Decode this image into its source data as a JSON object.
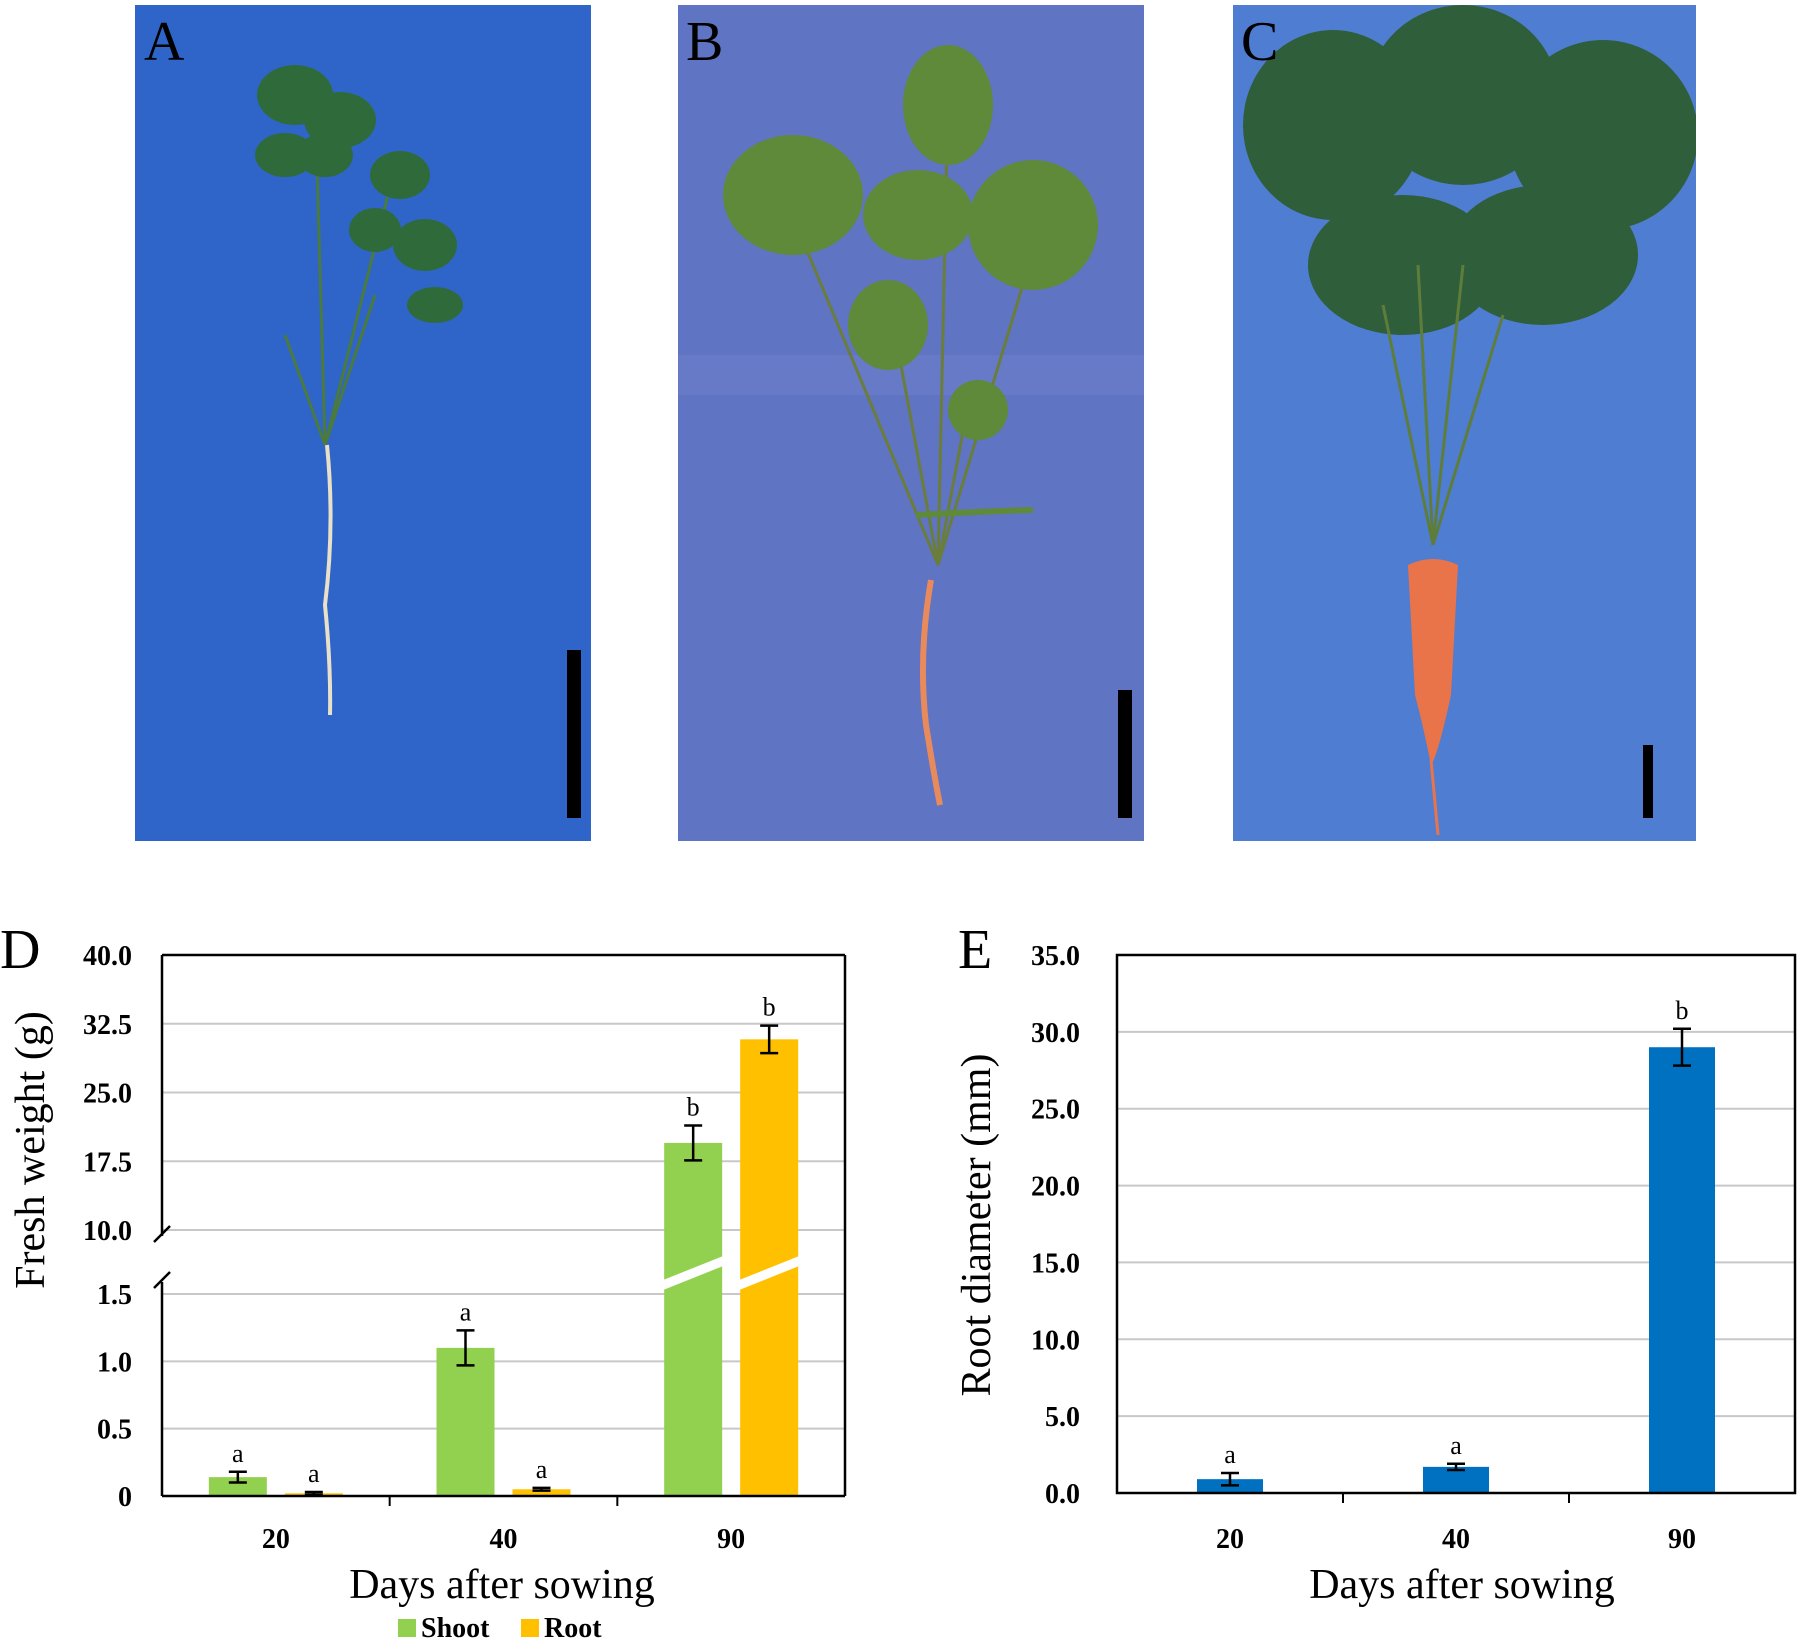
{
  "panels": {
    "A": {
      "label": "A"
    },
    "B": {
      "label": "B"
    },
    "C": {
      "label": "C"
    }
  },
  "colors": {
    "cloth_A": "#2f65c8",
    "cloth_B": "#5f74c2",
    "cloth_C": "#4e7dd1",
    "leaf": "#2f6b3a",
    "leaf_light": "#5f8a3a",
    "carrot": "#e9744a",
    "scale_bar": "#000000",
    "shoot": "#92d050",
    "root_orange": "#ffc000",
    "root_blue": "#0070c0"
  },
  "chart_data": [
    {
      "panel": "D",
      "type": "bar",
      "xlabel": "Days after sowing",
      "ylabel": "Fresh weight (g)",
      "categories": [
        "20",
        "40",
        "90"
      ],
      "axis_break": true,
      "lower_yticks": [
        "0",
        "0.5",
        "1.0",
        "1.5"
      ],
      "upper_yticks": [
        "10.0",
        "17.5",
        "25.0",
        "32.5",
        "40.0"
      ],
      "lower_ylim": [
        0,
        1.5
      ],
      "upper_ylim": [
        10,
        40
      ],
      "grid": true,
      "legend_position": "bottom",
      "series": [
        {
          "name": "Shoot",
          "color": "#92d050",
          "values": [
            0.14,
            1.1,
            19.5
          ],
          "errors": [
            0.04,
            0.13,
            1.9
          ],
          "letters": [
            "a",
            "a",
            "b"
          ]
        },
        {
          "name": "Root",
          "color": "#ffc000",
          "values": [
            0.02,
            0.05,
            30.8
          ],
          "errors": [
            0.01,
            0.01,
            1.5
          ],
          "letters": [
            "a",
            "a",
            "b"
          ]
        }
      ]
    },
    {
      "panel": "E",
      "type": "bar",
      "xlabel": "Days after sowing",
      "ylabel": "Root diameter (mm)",
      "categories": [
        "20",
        "40",
        "90"
      ],
      "yticks": [
        "0.0",
        "5.0",
        "10.0",
        "15.0",
        "20.0",
        "25.0",
        "30.0",
        "35.0"
      ],
      "ylim": [
        0,
        35
      ],
      "grid": true,
      "series": [
        {
          "color": "#0070c0",
          "values": [
            0.9,
            1.7,
            29.0
          ],
          "errors": [
            0.4,
            0.2,
            1.2
          ],
          "letters": [
            "a",
            "a",
            "b"
          ]
        }
      ]
    }
  ]
}
